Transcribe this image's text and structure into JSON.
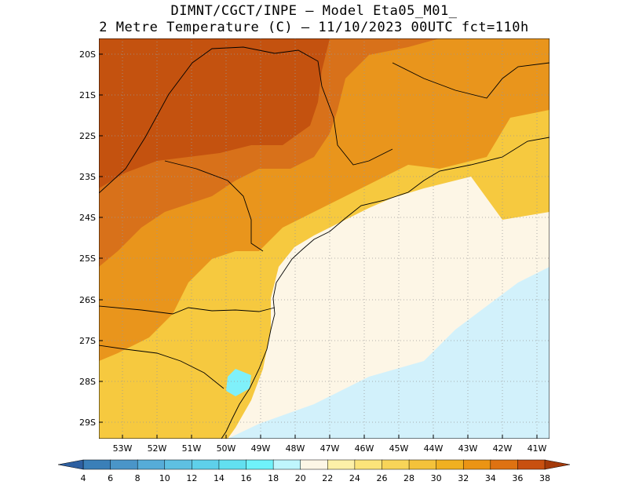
{
  "title_line1": "DIMNT/CGCT/INPE –  Model Eta05_M01_",
  "title_line2": "2 Metre Temperature (C) –  11/10/2023 00UTC fct=110h",
  "lat_labels": [
    "20S",
    "21S",
    "22S",
    "23S",
    "24S",
    "25S",
    "26S",
    "27S",
    "28S",
    "29S"
  ],
  "lon_labels": [
    "53W",
    "52W",
    "51W",
    "50W",
    "49W",
    "48W",
    "47W",
    "46W",
    "45W",
    "44W",
    "43W",
    "42W",
    "41W"
  ],
  "colorbar": {
    "ticks": [
      "4",
      "6",
      "8",
      "10",
      "12",
      "14",
      "16",
      "18",
      "20",
      "22",
      "24",
      "26",
      "28",
      "30",
      "32",
      "34",
      "36",
      "38"
    ],
    "colors": [
      "#3a7fb8",
      "#4a95c8",
      "#56acd8",
      "#5ec0e2",
      "#5ed0ea",
      "#62e0f0",
      "#6ff2fa",
      "#bff6fd",
      "#fdf6e6",
      "#fdf0a8",
      "#fce47a",
      "#f8d458",
      "#f4c23a",
      "#f0b020",
      "#eb9414",
      "#de7212",
      "#c85010"
    ]
  },
  "map_colors": {
    "ocean_cold": "#d2f1fb",
    "ocean_mild": "#fdf6e6",
    "coast_warm": "#fcee9c",
    "land_warm": "#f6c93f",
    "land_hot": "#e9951c",
    "land_hotter": "#d8711a",
    "land_hottest": "#c4520f"
  }
}
